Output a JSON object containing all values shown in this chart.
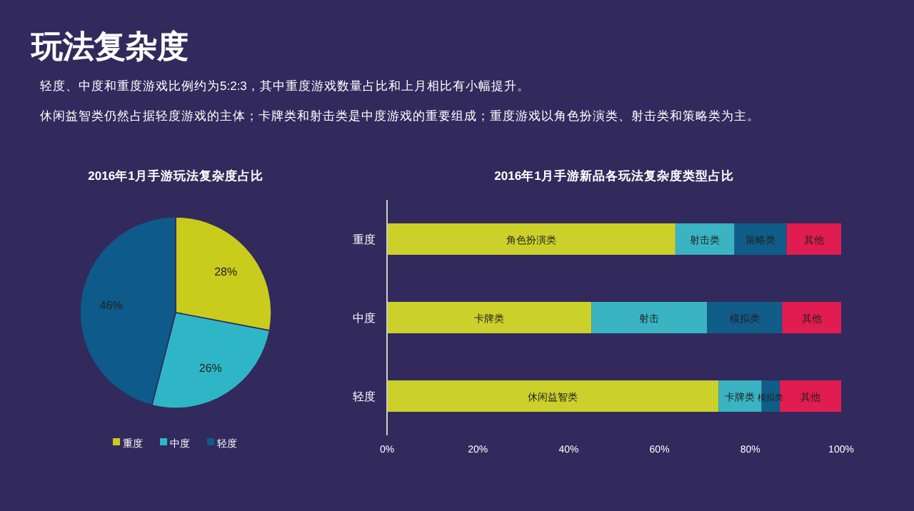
{
  "chart_data": [
    {
      "type": "other",
      "title": "玩法复杂度",
      "annotations": [
        "轻度、中度和重度游戏比例约为5:2:3，其中重度游戏数量占比和上月相比有小幅提升。",
        "休闲益智类仍然占据轻度游戏的主体；卡牌类和射击类是中度游戏的重要组成；重度游戏以角色扮演类、射击类和策略类为主。"
      ]
    },
    {
      "type": "pie",
      "title": "2016年1月手游玩法复杂度占比",
      "categories": [
        "重度",
        "中度",
        "轻度"
      ],
      "values": [
        28,
        26,
        46
      ],
      "colors": [
        "#c9cc1c",
        "#2fb6c6",
        "#0e5a8a"
      ],
      "value_labels": [
        "28%",
        "26%",
        "46%"
      ],
      "legend": "bottom"
    },
    {
      "type": "bar",
      "orientation": "horizontal",
      "stacked": true,
      "title": "2016年1月手游新品各玩法复杂度类型占比",
      "categories": [
        "重度",
        "中度",
        "轻度"
      ],
      "series": [
        {
          "color": "#ccd02a",
          "values": [
            63.5,
            45,
            73
          ],
          "value_labels": [
            "角色扮演类",
            "卡牌类",
            "休闲益智类"
          ]
        },
        {
          "color": "#3ab4c2",
          "values": [
            13,
            25.5,
            9.5
          ],
          "value_labels": [
            "射击类",
            "射击",
            "卡牌类"
          ]
        },
        {
          "color": "#0f5d88",
          "values": [
            11.5,
            16.5,
            4
          ],
          "value_labels": [
            "策略类",
            "模拟类",
            "模拟类"
          ]
        },
        {
          "color": "#e01c50",
          "values": [
            12,
            13,
            13.5
          ],
          "value_labels": [
            "其他",
            "其他",
            "其他"
          ]
        }
      ],
      "xlim": [
        0,
        100
      ],
      "xticks": [
        {
          "value": 0,
          "label": "0%"
        },
        {
          "value": 20,
          "label": "20%"
        },
        {
          "value": 40,
          "label": "40%"
        },
        {
          "value": 60,
          "label": "60%"
        },
        {
          "value": 80,
          "label": "80%"
        },
        {
          "value": 100,
          "label": "100%"
        }
      ]
    }
  ]
}
